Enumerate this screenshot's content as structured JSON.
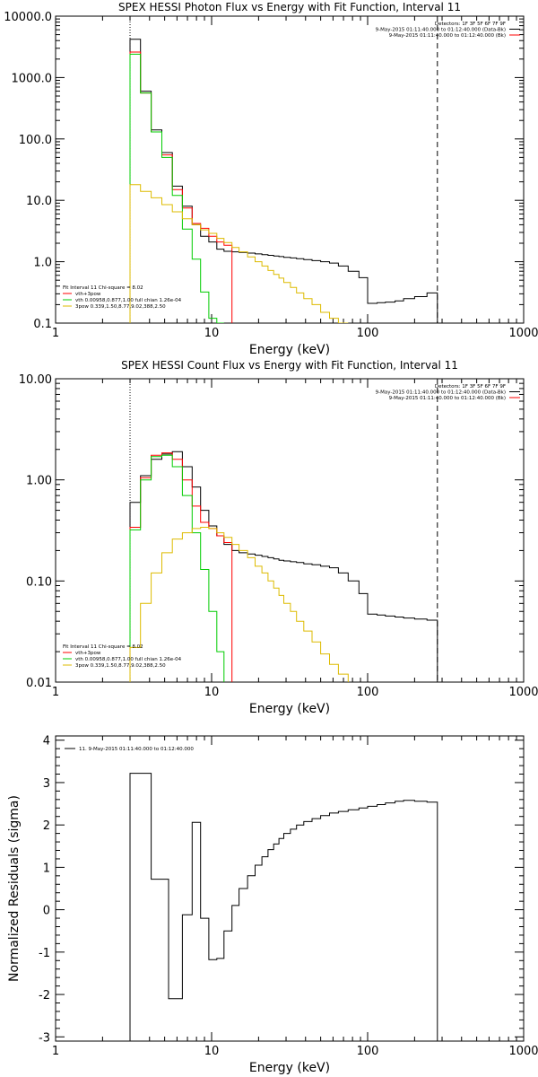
{
  "chart_data": [
    {
      "type": "line",
      "title": "SPEX HESSI Photon Flux vs Energy with Fit Function, Interval 11",
      "xlabel": "Energy (keV)",
      "ylabel": "",
      "xscale": "log",
      "yscale": "log",
      "xlim": [
        1,
        1000
      ],
      "ylim": [
        0.1,
        10000
      ],
      "xticks": [
        "1",
        "10",
        "100",
        "1000"
      ],
      "yticks": [
        "0.1",
        "1.0",
        "10.0",
        "100.0",
        "1000.0",
        "10000.0"
      ],
      "vlines": [
        {
          "x": 3,
          "style": "dotted"
        },
        {
          "x": 280,
          "style": "dashed"
        }
      ],
      "legend_top": [
        "Detectors: 1F 3F 5F 6F 7F 9F",
        "9-May-2015 01:11:40.000 to 01:12:40.000 (Data-Bk)",
        "9-May-2015 01:11:40.000 to 01:12:40.000 (Bk)"
      ],
      "legend_bottom": [
        "Fit Interval 11    Chi-square = 8.02",
        "vth+3pow",
        "vth 0.00958,0.877,1.00  full chian 1.26e-04",
        "3pow 0.339,1.50,8.77,9.02,388,2.50"
      ],
      "series": [
        {
          "color": "#000000",
          "edges": [
            3,
            3.5,
            4.1,
            4.8,
            5.6,
            6.5,
            7.5,
            8.5,
            9.6,
            10.8,
            12,
            13.5,
            15,
            17,
            19,
            21,
            23,
            25,
            27,
            29,
            32,
            35,
            39,
            44,
            50,
            57,
            65,
            75,
            88,
            100,
            115,
            130,
            150,
            170,
            200,
            240,
            280
          ],
          "values": [
            4200,
            600,
            140,
            60,
            17,
            8,
            4,
            2.6,
            2.1,
            1.6,
            1.48,
            1.45,
            1.42,
            1.38,
            1.34,
            1.3,
            1.27,
            1.24,
            1.21,
            1.18,
            1.15,
            1.12,
            1.08,
            1.04,
            1.0,
            0.95,
            0.85,
            0.7,
            0.55,
            0.21,
            0.215,
            0.22,
            0.23,
            0.25,
            0.27,
            0.31
          ]
        },
        {
          "color": "#ff0000",
          "edges": [
            3,
            3.5,
            4.1,
            4.8,
            5.6,
            6.5,
            7.5,
            8.5,
            9.6,
            10.8,
            12,
            13.5
          ],
          "values": [
            2600,
            560,
            130,
            55,
            15,
            7.5,
            4.2,
            3.5,
            2.6,
            2.1,
            1.85
          ]
        },
        {
          "color": "#00cc00",
          "edges": [
            3,
            3.5,
            4.1,
            4.8,
            5.6,
            6.5,
            7.5,
            8.5,
            9.6,
            10.8,
            12
          ],
          "values": [
            2400,
            560,
            130,
            50,
            12,
            3.4,
            1.1,
            0.32,
            0.12,
            0.05
          ]
        },
        {
          "color": "#ddbb00",
          "edges": [
            3,
            3.5,
            4.1,
            4.8,
            5.6,
            6.5,
            7.5,
            8.5,
            9.6,
            10.8,
            12,
            13.5,
            15,
            17,
            19,
            21,
            23,
            25,
            27,
            29,
            32,
            35,
            39,
            44,
            50,
            57,
            65,
            75
          ],
          "values": [
            18,
            14,
            11,
            8.5,
            6.5,
            5,
            4,
            3.3,
            2.9,
            2.4,
            2.05,
            1.7,
            1.45,
            1.2,
            1.0,
            0.85,
            0.72,
            0.62,
            0.54,
            0.46,
            0.38,
            0.31,
            0.25,
            0.2,
            0.15,
            0.12,
            0.1
          ]
        }
      ]
    },
    {
      "type": "line",
      "title": "SPEX HESSI Count Flux vs Energy with Fit Function, Interval 11",
      "xlabel": "Energy (keV)",
      "ylabel": "",
      "xscale": "log",
      "yscale": "log",
      "xlim": [
        1,
        1000
      ],
      "ylim": [
        0.01,
        10
      ],
      "xticks": [
        "1",
        "10",
        "100",
        "1000"
      ],
      "yticks": [
        "0.01",
        "0.10",
        "1.00",
        "10.00"
      ],
      "vlines": [
        {
          "x": 3,
          "style": "dotted"
        },
        {
          "x": 280,
          "style": "dashed"
        }
      ],
      "legend_top": [
        "Detectors: 1F 3F 5F 6F 7F 9F",
        "9-May-2015 01:11:40.000 to 01:12:40.000 (Data-Bk)",
        "9-May-2015 01:11:40.000 to 01:12:40.000 (Bk)"
      ],
      "legend_bottom": [
        "Fit Interval 11    Chi-square = 8.02",
        "vth+3pow",
        "vth 0.00958,0.877,1.00  full chian 1.26e-04",
        "3pow 0.339,1.50,8.77,9.02,388,2.50"
      ],
      "series": [
        {
          "color": "#000000",
          "edges": [
            3,
            3.5,
            4.1,
            4.8,
            5.6,
            6.5,
            7.5,
            8.5,
            9.6,
            10.8,
            12,
            13.5,
            15,
            17,
            19,
            21,
            23,
            25,
            27,
            29,
            32,
            35,
            39,
            44,
            50,
            57,
            65,
            75,
            88,
            100,
            115,
            130,
            150,
            170,
            200,
            240,
            280
          ],
          "values": [
            0.6,
            1.1,
            1.6,
            1.8,
            1.9,
            1.35,
            0.85,
            0.5,
            0.35,
            0.28,
            0.23,
            0.2,
            0.19,
            0.185,
            0.18,
            0.175,
            0.17,
            0.165,
            0.16,
            0.158,
            0.155,
            0.152,
            0.148,
            0.145,
            0.14,
            0.135,
            0.12,
            0.1,
            0.075,
            0.047,
            0.046,
            0.045,
            0.044,
            0.043,
            0.042,
            0.041
          ]
        },
        {
          "color": "#ff0000",
          "edges": [
            3,
            3.5,
            4.1,
            4.8,
            5.6,
            6.5,
            7.5,
            8.5,
            9.6,
            10.8,
            12,
            13.5
          ],
          "values": [
            0.34,
            1.05,
            1.75,
            1.85,
            1.6,
            1.0,
            0.55,
            0.38,
            0.33,
            0.28,
            0.24
          ]
        },
        {
          "color": "#00cc00",
          "edges": [
            3,
            3.5,
            4.1,
            4.8,
            5.6,
            6.5,
            7.5,
            8.5,
            9.6,
            10.8,
            12
          ],
          "values": [
            0.32,
            1.0,
            1.7,
            1.75,
            1.35,
            0.7,
            0.3,
            0.13,
            0.05,
            0.02
          ]
        },
        {
          "color": "#ddbb00",
          "edges": [
            3,
            3.5,
            4.1,
            4.8,
            5.6,
            6.5,
            7.5,
            8.5,
            9.6,
            10.8,
            12,
            13.5,
            15,
            17,
            19,
            21,
            23,
            25,
            27,
            29,
            32,
            35,
            39,
            44,
            50,
            57,
            65,
            75
          ],
          "values": [
            0.022,
            0.06,
            0.12,
            0.19,
            0.26,
            0.3,
            0.33,
            0.34,
            0.33,
            0.3,
            0.27,
            0.23,
            0.2,
            0.17,
            0.14,
            0.12,
            0.1,
            0.085,
            0.072,
            0.06,
            0.05,
            0.04,
            0.032,
            0.025,
            0.019,
            0.015,
            0.012
          ]
        }
      ]
    },
    {
      "type": "line",
      "title": "",
      "xlabel": "Energy (keV)",
      "ylabel": "Normalized Residuals (sigma)",
      "xscale": "log",
      "yscale": "linear",
      "xlim": [
        1,
        1000
      ],
      "ylim": [
        -3.1,
        4.1
      ],
      "xticks": [
        "1",
        "10",
        "100",
        "1000"
      ],
      "yticks": [
        "-3",
        "-2",
        "-1",
        "0",
        "1",
        "2",
        "3",
        "4"
      ],
      "legend_top": [
        "11.  9-May-2015 01:11:40.000 to 01:12:40.000"
      ],
      "series": [
        {
          "color": "#000000",
          "edges": [
            3,
            4.1,
            5.3,
            6.5,
            7.5,
            8.5,
            9.6,
            10.8,
            12,
            13.5,
            15,
            17,
            19,
            21,
            23,
            25,
            27,
            29,
            32,
            35,
            39,
            44,
            50,
            57,
            65,
            75,
            88,
            100,
            115,
            130,
            150,
            170,
            200,
            240,
            280
          ],
          "values": [
            3.22,
            0.72,
            -2.1,
            -0.12,
            2.06,
            -0.2,
            -1.18,
            -1.15,
            -0.5,
            0.1,
            0.5,
            0.8,
            1.05,
            1.25,
            1.42,
            1.55,
            1.68,
            1.8,
            1.9,
            2.0,
            2.08,
            2.15,
            2.22,
            2.28,
            2.32,
            2.36,
            2.4,
            2.44,
            2.48,
            2.52,
            2.56,
            2.58,
            2.56,
            2.54
          ]
        }
      ]
    }
  ]
}
